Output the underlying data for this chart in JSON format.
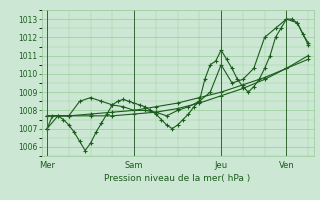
{
  "bg_color": "#cce8d4",
  "grid_color": "#99cc99",
  "line_color": "#1a5c1a",
  "tick_label_color": "#1a5c1a",
  "xlabel": "Pression niveau de la mer( hPa )",
  "ylim": [
    1005.5,
    1013.5
  ],
  "yticks": [
    1006,
    1007,
    1008,
    1009,
    1010,
    1011,
    1012,
    1013
  ],
  "day_labels": [
    "Mer",
    "Sam",
    "Jeu",
    "Ven"
  ],
  "day_positions": [
    0,
    32,
    64,
    88
  ],
  "vline_x": [
    0,
    32,
    64,
    88
  ],
  "series1_x": [
    0,
    2,
    4,
    6,
    8,
    10,
    12,
    14,
    16,
    18,
    20,
    22,
    24,
    26,
    28,
    30,
    32,
    34,
    36,
    38,
    40,
    42,
    44,
    46,
    48,
    50,
    52,
    54,
    56,
    58,
    60,
    62,
    64,
    66,
    68,
    70,
    72,
    74,
    76,
    78,
    80,
    82,
    84,
    86,
    88,
    90,
    92,
    94,
    96
  ],
  "series1_y": [
    1007.0,
    1007.7,
    1007.7,
    1007.5,
    1007.2,
    1006.8,
    1006.3,
    1005.8,
    1006.2,
    1006.8,
    1007.3,
    1007.8,
    1008.3,
    1008.5,
    1008.6,
    1008.5,
    1008.4,
    1008.3,
    1008.2,
    1008.0,
    1007.8,
    1007.5,
    1007.2,
    1007.0,
    1007.2,
    1007.5,
    1007.8,
    1008.2,
    1008.5,
    1009.7,
    1010.5,
    1010.7,
    1011.3,
    1010.8,
    1010.3,
    1009.7,
    1009.3,
    1009.0,
    1009.3,
    1009.7,
    1010.3,
    1011.0,
    1012.0,
    1012.5,
    1013.0,
    1013.0,
    1012.8,
    1012.2,
    1011.7
  ],
  "series2_x": [
    0,
    8,
    16,
    24,
    32,
    40,
    48,
    56,
    64,
    72,
    80,
    88,
    96
  ],
  "series2_y": [
    1007.7,
    1007.7,
    1007.7,
    1007.7,
    1007.8,
    1007.9,
    1008.1,
    1008.4,
    1008.8,
    1009.2,
    1009.7,
    1010.3,
    1011.0
  ],
  "series3_x": [
    0,
    8,
    16,
    24,
    32,
    40,
    48,
    56,
    64,
    72,
    80,
    88,
    96
  ],
  "series3_y": [
    1007.7,
    1007.7,
    1007.8,
    1007.9,
    1008.0,
    1008.2,
    1008.4,
    1008.7,
    1009.0,
    1009.4,
    1009.8,
    1010.3,
    1010.8
  ],
  "series4_x": [
    0,
    4,
    8,
    12,
    16,
    20,
    24,
    28,
    32,
    36,
    40,
    44,
    48,
    52,
    56,
    60,
    64,
    68,
    72,
    76,
    80,
    84,
    88,
    92,
    96
  ],
  "series4_y": [
    1007.0,
    1007.7,
    1007.7,
    1008.5,
    1008.7,
    1008.5,
    1008.3,
    1008.2,
    1008.0,
    1008.0,
    1007.9,
    1007.7,
    1008.0,
    1008.2,
    1008.5,
    1009.0,
    1010.5,
    1009.5,
    1009.7,
    1010.3,
    1012.0,
    1012.5,
    1013.0,
    1012.8,
    1011.6
  ],
  "xlim": [
    -2,
    98
  ]
}
